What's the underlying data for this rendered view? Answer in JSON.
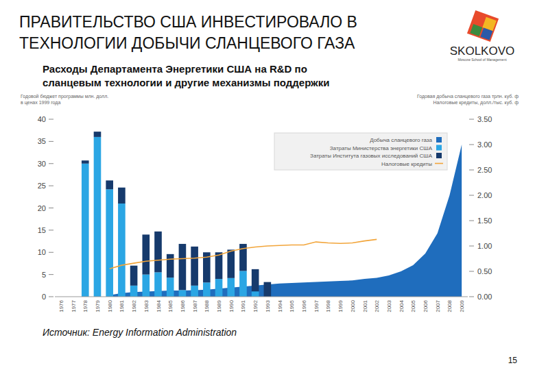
{
  "chart_data": {
    "type": "bar",
    "title": [
      "ПРАВИТЕЛЬСТВО США ИНВЕСТИРОВАЛО В",
      "ТЕХНОЛОГИИ ДОБЫЧИ СЛАНЦЕВОГО ГАЗА"
    ],
    "subtitle": [
      "Расходы Департамента Энергетики США на R&D по",
      "сланцевым технологии и другие механизмы поддержки"
    ],
    "logo": {
      "text": "SKOLKOVO",
      "subtitle": "Moscow School of Management"
    },
    "y_label": [
      "Годовой бюджет программы млн. долл.",
      "в ценах 1999 года"
    ],
    "y2_label": [
      "Годовая добыча сланцевого газа трлн. куб. ф",
      "Налоговые кредиты, долл./тыс. куб. ф"
    ],
    "source": "Источник: Energy Information Administration",
    "page_number": "15",
    "categories": [
      "1976",
      "1977",
      "1978",
      "1979",
      "1980",
      "1981",
      "1982",
      "1983",
      "1984",
      "1985",
      "1986",
      "1987",
      "1988",
      "1989",
      "1990",
      "1991",
      "1992",
      "1993",
      "1994",
      "1995",
      "1996",
      "1997",
      "1998",
      "1999",
      "2000",
      "2001",
      "2002",
      "2003",
      "2004",
      "2005",
      "2006",
      "2007",
      "2008",
      "2009"
    ],
    "stacked": true,
    "grid": false,
    "legend": "top-right",
    "ylim": [
      0,
      40
    ],
    "yticks": [
      0,
      5,
      10,
      15,
      20,
      25,
      30,
      35,
      40
    ],
    "y2lim": [
      0,
      3.5
    ],
    "y2ticks": [
      {
        "value": 0,
        "label": "0.00"
      },
      {
        "value": 0.5,
        "label": "0.50"
      },
      {
        "value": 1,
        "label": "1.00"
      },
      {
        "value": 1.5,
        "label": "1.50"
      },
      {
        "value": 2,
        "label": "2.00"
      },
      {
        "value": 2.5,
        "label": "2.50"
      },
      {
        "value": 3,
        "label": "3.00"
      },
      {
        "value": 3.5,
        "label": "3.50"
      }
    ],
    "series": [
      {
        "name": "Добыча сланцевого газа",
        "type": "area",
        "axis": "y2",
        "color": "#1f6dbd",
        "values": [
          null,
          null,
          null,
          null,
          0.03,
          0.07,
          0.09,
          0.1,
          0.11,
          0.12,
          0.12,
          0.13,
          0.14,
          0.16,
          0.18,
          0.2,
          0.22,
          0.24,
          0.26,
          0.27,
          0.28,
          0.29,
          0.3,
          0.31,
          0.32,
          0.35,
          0.37,
          0.42,
          0.5,
          0.62,
          0.85,
          1.25,
          2.0,
          3.0
        ]
      },
      {
        "name": "Затраты Министерства энергетики США",
        "type": "bar",
        "color": "#2ba6e4",
        "values": [
          0,
          0,
          30,
          36,
          24.2,
          21,
          2.5,
          5,
          5.5,
          4.3,
          1.5,
          2.5,
          3.2,
          4,
          4.2,
          5.8,
          1.2,
          0,
          0,
          0,
          0,
          0,
          0,
          0,
          0,
          0,
          0,
          0,
          0,
          0,
          0,
          0,
          0,
          0
        ]
      },
      {
        "name": "Затраты Института газовых исследований США",
        "type": "bar",
        "color": "#163a6c",
        "values": [
          0,
          0,
          0.7,
          1.2,
          2,
          3.6,
          4.5,
          9,
          9.2,
          5.3,
          10.4,
          8.8,
          6.8,
          6,
          6.4,
          6.1,
          5,
          3.3,
          0,
          0,
          0,
          0,
          0,
          0,
          0,
          0,
          0,
          0,
          0,
          0,
          0,
          0,
          0,
          0
        ]
      },
      {
        "name": "Налоговые кредиты",
        "type": "line",
        "axis": "y2",
        "color": "#f2a53a",
        "values": [
          null,
          null,
          null,
          null,
          0.55,
          0.62,
          0.66,
          0.7,
          0.72,
          0.74,
          0.75,
          0.76,
          0.78,
          0.82,
          0.9,
          0.95,
          0.98,
          1.0,
          1.01,
          1.02,
          1.02,
          1.08,
          1.06,
          1.05,
          1.06,
          1.1,
          1.13,
          null,
          null,
          null,
          null,
          null,
          null,
          null
        ]
      }
    ]
  }
}
